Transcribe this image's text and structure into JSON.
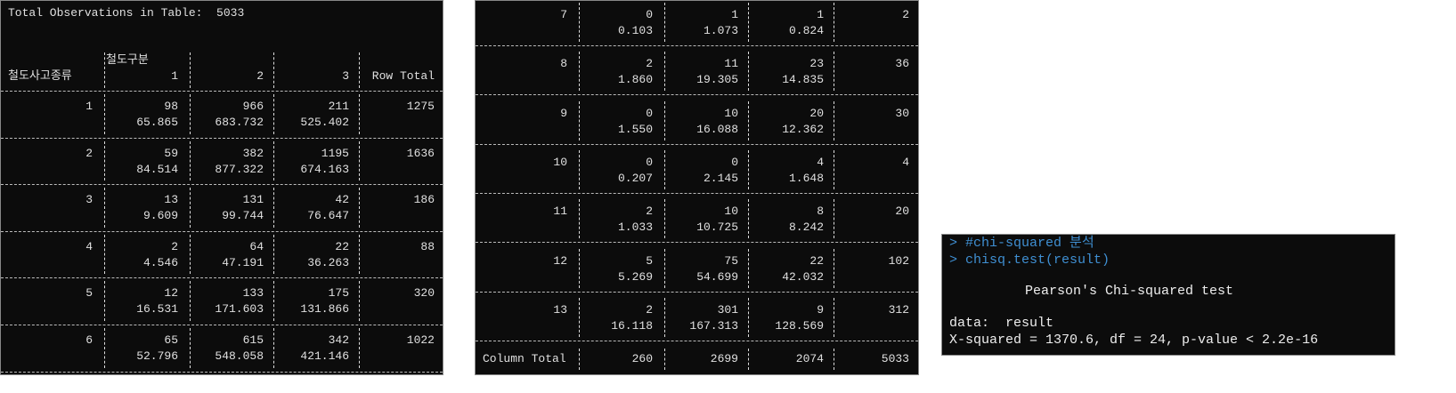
{
  "header": {
    "title": "Total Observations in Table:  5033"
  },
  "table": {
    "column_variable": "철도구분",
    "row_variable": "철도사고종류",
    "columns": [
      "1",
      "2",
      "3",
      "Row Total"
    ],
    "rows": [
      {
        "label": "1",
        "cells": [
          {
            "count": "98",
            "expected": "65.865"
          },
          {
            "count": "966",
            "expected": "683.732"
          },
          {
            "count": "211",
            "expected": "525.402"
          }
        ],
        "total": "1275"
      },
      {
        "label": "2",
        "cells": [
          {
            "count": "59",
            "expected": "84.514"
          },
          {
            "count": "382",
            "expected": "877.322"
          },
          {
            "count": "1195",
            "expected": "674.163"
          }
        ],
        "total": "1636"
      },
      {
        "label": "3",
        "cells": [
          {
            "count": "13",
            "expected": "9.609"
          },
          {
            "count": "131",
            "expected": "99.744"
          },
          {
            "count": "42",
            "expected": "76.647"
          }
        ],
        "total": "186"
      },
      {
        "label": "4",
        "cells": [
          {
            "count": "2",
            "expected": "4.546"
          },
          {
            "count": "64",
            "expected": "47.191"
          },
          {
            "count": "22",
            "expected": "36.263"
          }
        ],
        "total": "88"
      },
      {
        "label": "5",
        "cells": [
          {
            "count": "12",
            "expected": "16.531"
          },
          {
            "count": "133",
            "expected": "171.603"
          },
          {
            "count": "175",
            "expected": "131.866"
          }
        ],
        "total": "320"
      },
      {
        "label": "6",
        "cells": [
          {
            "count": "65",
            "expected": "52.796"
          },
          {
            "count": "615",
            "expected": "548.058"
          },
          {
            "count": "342",
            "expected": "421.146"
          }
        ],
        "total": "1022"
      },
      {
        "label": "7",
        "cells": [
          {
            "count": "0",
            "expected": "0.103"
          },
          {
            "count": "1",
            "expected": "1.073"
          },
          {
            "count": "1",
            "expected": "0.824"
          }
        ],
        "total": "2"
      },
      {
        "label": "8",
        "cells": [
          {
            "count": "2",
            "expected": "1.860"
          },
          {
            "count": "11",
            "expected": "19.305"
          },
          {
            "count": "23",
            "expected": "14.835"
          }
        ],
        "total": "36"
      },
      {
        "label": "9",
        "cells": [
          {
            "count": "0",
            "expected": "1.550"
          },
          {
            "count": "10",
            "expected": "16.088"
          },
          {
            "count": "20",
            "expected": "12.362"
          }
        ],
        "total": "30"
      },
      {
        "label": "10",
        "cells": [
          {
            "count": "0",
            "expected": "0.207"
          },
          {
            "count": "0",
            "expected": "2.145"
          },
          {
            "count": "4",
            "expected": "1.648"
          }
        ],
        "total": "4"
      },
      {
        "label": "11",
        "cells": [
          {
            "count": "2",
            "expected": "1.033"
          },
          {
            "count": "10",
            "expected": "10.725"
          },
          {
            "count": "8",
            "expected": "8.242"
          }
        ],
        "total": "20"
      },
      {
        "label": "12",
        "cells": [
          {
            "count": "5",
            "expected": "5.269"
          },
          {
            "count": "75",
            "expected": "54.699"
          },
          {
            "count": "22",
            "expected": "42.032"
          }
        ],
        "total": "102"
      },
      {
        "label": "13",
        "cells": [
          {
            "count": "2",
            "expected": "16.118"
          },
          {
            "count": "301",
            "expected": "167.313"
          },
          {
            "count": "9",
            "expected": "128.569"
          }
        ],
        "total": "312"
      }
    ],
    "column_total": {
      "label": "Column Total",
      "values": [
        "260",
        "2699",
        "2074",
        "5033"
      ]
    }
  },
  "console": {
    "commands": [
      "> #chi-squared 분석",
      "> chisq.test(result)"
    ],
    "test_title": "Pearson's Chi-squared test",
    "data_line": "data:  result",
    "result_line": "X-squared = 1370.6, df = 24, p-value < 2.2e-16"
  }
}
